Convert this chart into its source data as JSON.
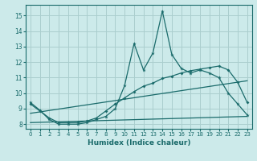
{
  "title": "",
  "xlabel": "Humidex (Indice chaleur)",
  "ylabel": "",
  "bg_color": "#cceaea",
  "grid_color": "#aacece",
  "line_color": "#1a6b6b",
  "xlim": [
    -0.5,
    23.5
  ],
  "ylim": [
    7.7,
    15.7
  ],
  "yticks": [
    8,
    9,
    10,
    11,
    12,
    13,
    14,
    15
  ],
  "xticks": [
    0,
    1,
    2,
    3,
    4,
    5,
    6,
    7,
    8,
    9,
    10,
    11,
    12,
    13,
    14,
    15,
    16,
    17,
    18,
    19,
    20,
    21,
    22,
    23
  ],
  "series1_x": [
    0,
    1,
    2,
    3,
    4,
    5,
    6,
    7,
    8,
    9,
    10,
    11,
    12,
    13,
    14,
    15,
    16,
    17,
    18,
    19,
    20,
    21,
    22,
    23
  ],
  "series1_y": [
    9.4,
    8.9,
    8.3,
    8.0,
    8.0,
    8.0,
    8.1,
    8.3,
    8.5,
    9.0,
    10.5,
    13.2,
    11.5,
    12.6,
    15.3,
    12.5,
    11.6,
    11.3,
    11.5,
    11.3,
    11.0,
    10.0,
    9.3,
    8.6
  ],
  "series2_x": [
    0,
    1,
    2,
    3,
    4,
    5,
    6,
    7,
    8,
    9,
    10,
    11,
    12,
    13,
    14,
    15,
    16,
    17,
    18,
    19,
    20,
    21,
    22,
    23
  ],
  "series2_y": [
    9.3,
    8.85,
    8.4,
    8.1,
    8.1,
    8.1,
    8.2,
    8.4,
    8.85,
    9.3,
    9.7,
    10.1,
    10.45,
    10.65,
    10.95,
    11.1,
    11.3,
    11.45,
    11.55,
    11.65,
    11.75,
    11.5,
    10.7,
    9.4
  ],
  "series3_x": [
    0,
    23
  ],
  "series3_y": [
    8.1,
    8.5
  ],
  "series4_x": [
    0,
    23
  ],
  "series4_y": [
    8.7,
    10.8
  ]
}
